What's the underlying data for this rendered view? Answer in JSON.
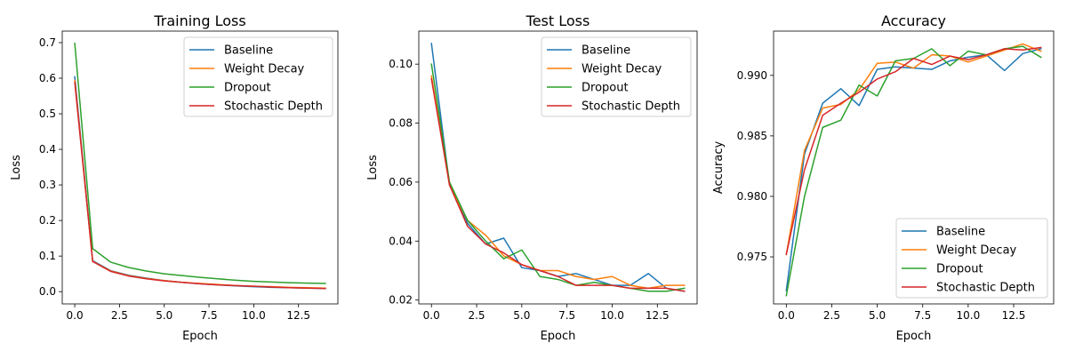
{
  "chart_data": [
    {
      "type": "line",
      "title": "Training Loss",
      "xlabel": "Epoch",
      "ylabel": "Loss",
      "xlim": [
        -0.7,
        14.7
      ],
      "ylim": [
        -0.0345,
        0.7324
      ],
      "xticks": [
        0,
        2.5,
        5,
        7.5,
        10,
        12.5
      ],
      "xtick_labels": [
        "0.0",
        "2.5",
        "5.0",
        "7.5",
        "10.0",
        "12.5"
      ],
      "yticks": [
        0,
        0.1,
        0.2,
        0.3,
        0.4,
        0.5,
        0.6,
        0.7
      ],
      "ytick_labels": [
        "0.0",
        "0.1",
        "0.2",
        "0.3",
        "0.4",
        "0.5",
        "0.6",
        "0.7"
      ],
      "legend_position": "top-right",
      "x": [
        0,
        1,
        2,
        3,
        4,
        5,
        6,
        7,
        8,
        9,
        10,
        11,
        12,
        13,
        14
      ],
      "series": [
        {
          "name": "Baseline",
          "color": "#1f77b4",
          "values": [
            0.604,
            0.087,
            0.059,
            0.046,
            0.038,
            0.031,
            0.026,
            0.022,
            0.019,
            0.016,
            0.014,
            0.012,
            0.011,
            0.01,
            0.009
          ]
        },
        {
          "name": "Weight Decay",
          "color": "#ff7f0e",
          "values": [
            0.594,
            0.085,
            0.058,
            0.045,
            0.037,
            0.031,
            0.026,
            0.023,
            0.02,
            0.017,
            0.015,
            0.014,
            0.012,
            0.011,
            0.01
          ]
        },
        {
          "name": "Dropout",
          "color": "#2ca02c",
          "values": [
            0.698,
            0.121,
            0.083,
            0.068,
            0.058,
            0.05,
            0.045,
            0.04,
            0.036,
            0.032,
            0.029,
            0.027,
            0.025,
            0.024,
            0.023
          ]
        },
        {
          "name": "Stochastic Depth",
          "color": "#d62728",
          "values": [
            0.588,
            0.085,
            0.057,
            0.044,
            0.036,
            0.03,
            0.026,
            0.022,
            0.019,
            0.017,
            0.015,
            0.013,
            0.011,
            0.01,
            0.009
          ]
        }
      ]
    },
    {
      "type": "line",
      "title": "Test Loss",
      "xlabel": "Epoch",
      "ylabel": "Loss",
      "xlim": [
        -0.7,
        14.7
      ],
      "ylim": [
        0.0187,
        0.1112
      ],
      "xticks": [
        0,
        2.5,
        5,
        7.5,
        10,
        12.5
      ],
      "xtick_labels": [
        "0.0",
        "2.5",
        "5.0",
        "7.5",
        "10.0",
        "12.5"
      ],
      "yticks": [
        0.02,
        0.04,
        0.06,
        0.08,
        0.1
      ],
      "ytick_labels": [
        "0.02",
        "0.04",
        "0.06",
        "0.08",
        "0.10"
      ],
      "legend_position": "top-right",
      "x": [
        0,
        1,
        2,
        3,
        4,
        5,
        6,
        7,
        8,
        9,
        10,
        11,
        12,
        13,
        14
      ],
      "series": [
        {
          "name": "Baseline",
          "color": "#1f77b4",
          "values": [
            0.107,
            0.059,
            0.046,
            0.039,
            0.041,
            0.031,
            0.03,
            0.028,
            0.029,
            0.027,
            0.025,
            0.025,
            0.029,
            0.024,
            0.023
          ]
        },
        {
          "name": "Weight Decay",
          "color": "#ff7f0e",
          "values": [
            0.096,
            0.059,
            0.047,
            0.042,
            0.035,
            0.032,
            0.03,
            0.03,
            0.028,
            0.027,
            0.028,
            0.025,
            0.024,
            0.025,
            0.025
          ]
        },
        {
          "name": "Dropout",
          "color": "#2ca02c",
          "values": [
            0.1,
            0.06,
            0.047,
            0.04,
            0.034,
            0.037,
            0.028,
            0.027,
            0.025,
            0.026,
            0.025,
            0.024,
            0.023,
            0.023,
            0.024
          ]
        },
        {
          "name": "Stochastic Depth",
          "color": "#d62728",
          "values": [
            0.095,
            0.059,
            0.045,
            0.039,
            0.036,
            0.032,
            0.03,
            0.028,
            0.025,
            0.025,
            0.025,
            0.024,
            0.024,
            0.024,
            0.023
          ]
        }
      ]
    },
    {
      "type": "line",
      "title": "Accuracy",
      "xlabel": "Epoch",
      "ylabel": "Accuracy",
      "xlim": [
        -0.7,
        14.7
      ],
      "ylim": [
        0.97111,
        0.99366
      ],
      "xticks": [
        0,
        2.5,
        5,
        7.5,
        10,
        12.5
      ],
      "xtick_labels": [
        "0.0",
        "2.5",
        "5.0",
        "7.5",
        "10.0",
        "12.5"
      ],
      "yticks": [
        0.975,
        0.98,
        0.985,
        0.99
      ],
      "ytick_labels": [
        "0.975",
        "0.980",
        "0.985",
        "0.990"
      ],
      "legend_position": "bottom-right",
      "x": [
        0,
        1,
        2,
        3,
        4,
        5,
        6,
        7,
        8,
        9,
        10,
        11,
        12,
        13,
        14
      ],
      "series": [
        {
          "name": "Baseline",
          "color": "#1f77b4",
          "values": [
            0.9722,
            0.9835,
            0.9877,
            0.9889,
            0.9875,
            0.9905,
            0.9907,
            0.9906,
            0.9905,
            0.9912,
            0.9915,
            0.9917,
            0.9904,
            0.9918,
            0.9922
          ]
        },
        {
          "name": "Weight Decay",
          "color": "#ff7f0e",
          "values": [
            0.9752,
            0.9838,
            0.9873,
            0.9876,
            0.9888,
            0.991,
            0.9911,
            0.9906,
            0.9917,
            0.9916,
            0.9911,
            0.9916,
            0.9921,
            0.9926,
            0.992
          ]
        },
        {
          "name": "Dropout",
          "color": "#2ca02c",
          "values": [
            0.9718,
            0.98,
            0.9857,
            0.9863,
            0.9892,
            0.9883,
            0.9912,
            0.9914,
            0.9922,
            0.9908,
            0.992,
            0.9917,
            0.9922,
            0.9924,
            0.9915
          ]
        },
        {
          "name": "Stochastic Depth",
          "color": "#d62728",
          "values": [
            0.9752,
            0.9822,
            0.9867,
            0.9877,
            0.9886,
            0.9897,
            0.9903,
            0.9914,
            0.9909,
            0.9916,
            0.9913,
            0.9917,
            0.9922,
            0.9921,
            0.9923
          ]
        }
      ]
    }
  ]
}
